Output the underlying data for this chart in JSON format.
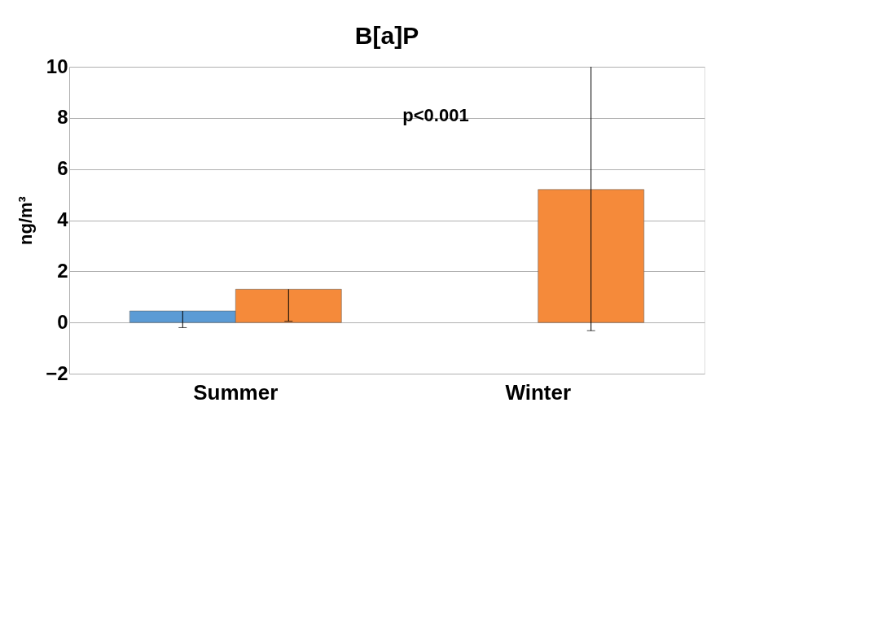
{
  "chart_data": {
    "type": "bar",
    "title": "B[a]P",
    "ylabel": "ng/m³",
    "categories": [
      "Summer",
      "Winter"
    ],
    "series": [
      {
        "color": "#5b9bd5",
        "values": [
          0.45,
          null
        ],
        "errors": [
          [
            -0.2,
            0.45
          ],
          null
        ]
      },
      {
        "color": "#f58a3a",
        "values": [
          1.3,
          5.2
        ],
        "errors": [
          [
            0.05,
            1.3
          ],
          [
            -0.32,
            10
          ]
        ]
      }
    ],
    "ylim": [
      -2,
      10
    ],
    "yticks": [
      -2,
      0,
      2,
      4,
      6,
      8,
      10
    ],
    "grid": "y",
    "annotations": [
      "p<0.001"
    ]
  }
}
